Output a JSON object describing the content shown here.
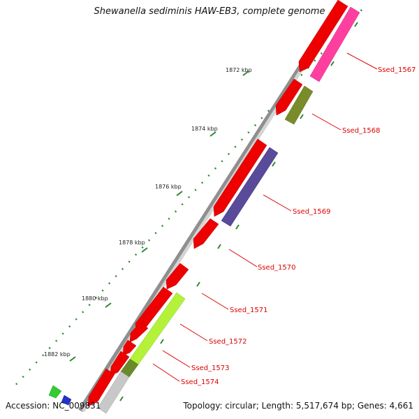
{
  "title": "Shewanella sediminis HAW-EB3, complete genome",
  "tick_labels": [
    "1872 kbp",
    "1874 kbp",
    "1876 kbp",
    "1878 kbp",
    "1880 kbp",
    "1882 kbp"
  ],
  "gene_labels": [
    "Ssed_1567",
    "Ssed_1568",
    "Ssed_1569",
    "Ssed_1570",
    "Ssed_1571",
    "Ssed_1572",
    "Ssed_1573",
    "Ssed_1574"
  ],
  "footer": {
    "accession": "Accession: NC_009831",
    "stats": "Topology: circular; Length: 5,517,674 bp; Genes: 4,661"
  },
  "colors": {
    "forward_gene": "#ee0000",
    "backbone": "#9a9a9a",
    "tick": "#2a8a2a",
    "label": "#dd0000"
  }
}
